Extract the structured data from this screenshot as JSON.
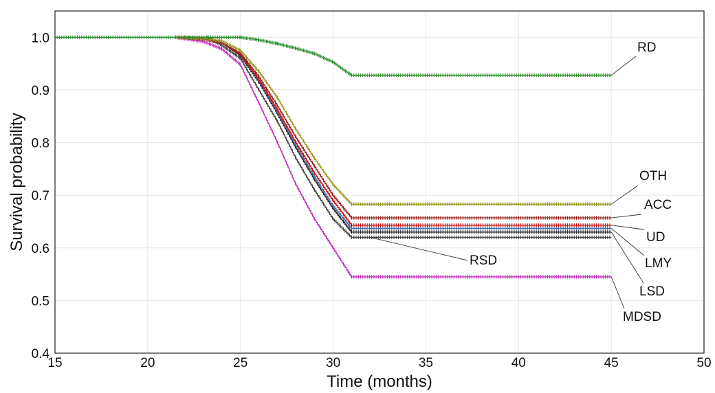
{
  "chart_data": {
    "type": "line",
    "title": "",
    "xlabel": "Time (months)",
    "ylabel": "Survival probability",
    "xlim": [
      15,
      50
    ],
    "ylim": [
      0.4,
      1.05
    ],
    "x_ticks": [
      "15",
      "20",
      "25",
      "30",
      "35",
      "40",
      "45",
      "50"
    ],
    "y_ticks": [
      "0.4",
      "0.5",
      "0.6",
      "0.7",
      "0.8",
      "0.9",
      "1.0"
    ],
    "grid": true,
    "legend": "direct labels at right",
    "series": [
      {
        "name": "RD",
        "color": "#2f8f2f",
        "x": [
          15,
          25,
          26,
          27,
          28,
          29,
          30,
          30.5,
          31,
          45
        ],
        "y": [
          1.0,
          1.0,
          0.995,
          0.988,
          0.979,
          0.969,
          0.953,
          0.94,
          0.928,
          0.928
        ]
      },
      {
        "name": "OTH",
        "color": "#9a9a20",
        "x": [
          21.5,
          23,
          24,
          25,
          26,
          27,
          28,
          29,
          30,
          31,
          45
        ],
        "y": [
          1.0,
          0.998,
          0.993,
          0.975,
          0.935,
          0.885,
          0.825,
          0.77,
          0.72,
          0.683,
          0.683
        ]
      },
      {
        "name": "ACC",
        "color": "#9a2020",
        "x": [
          21.5,
          23,
          24,
          25,
          26,
          27,
          28,
          29,
          30,
          31,
          45
        ],
        "y": [
          1.0,
          0.997,
          0.99,
          0.97,
          0.925,
          0.87,
          0.81,
          0.755,
          0.7,
          0.657,
          0.657
        ]
      },
      {
        "name": "UD",
        "color": "#cc1010",
        "x": [
          21.5,
          23,
          24,
          25,
          26,
          27,
          28,
          29,
          30,
          31,
          45
        ],
        "y": [
          1.0,
          0.997,
          0.99,
          0.968,
          0.92,
          0.862,
          0.8,
          0.742,
          0.69,
          0.643,
          0.643
        ]
      },
      {
        "name": "LMY",
        "color": "#4a6fb0",
        "x": [
          21.5,
          23,
          24,
          25,
          26,
          27,
          28,
          29,
          30,
          31,
          45
        ],
        "y": [
          1.0,
          0.997,
          0.99,
          0.967,
          0.918,
          0.858,
          0.795,
          0.735,
          0.68,
          0.637,
          0.637
        ]
      },
      {
        "name": "LSD",
        "color": "#222222",
        "x": [
          22,
          23,
          24,
          25,
          26,
          27,
          28,
          29,
          30,
          31,
          45
        ],
        "y": [
          1.0,
          0.997,
          0.99,
          0.965,
          0.915,
          0.855,
          0.79,
          0.73,
          0.675,
          0.63,
          0.63
        ]
      },
      {
        "name": "RSD",
        "color": "#444444",
        "x": [
          23.2,
          24,
          25,
          26,
          27,
          28,
          29,
          30,
          31,
          45
        ],
        "y": [
          1.0,
          0.985,
          0.96,
          0.9,
          0.84,
          0.77,
          0.71,
          0.655,
          0.62,
          0.62
        ]
      },
      {
        "name": "MDSD",
        "color": "#c030c0",
        "x": [
          21.5,
          23,
          24,
          25,
          26,
          27,
          28,
          29,
          30,
          31,
          45
        ],
        "y": [
          1.0,
          0.992,
          0.978,
          0.948,
          0.875,
          0.8,
          0.72,
          0.655,
          0.6,
          0.545,
          0.545
        ]
      }
    ],
    "labels": [
      {
        "text": "RD",
        "series": "RD"
      },
      {
        "text": "OTH",
        "series": "OTH"
      },
      {
        "text": "ACC",
        "series": "ACC"
      },
      {
        "text": "UD",
        "series": "UD"
      },
      {
        "text": "LMY",
        "series": "LMY"
      },
      {
        "text": "LSD",
        "series": "LSD"
      },
      {
        "text": "RSD",
        "series": "RSD"
      },
      {
        "text": "MDSD",
        "series": "MDSD"
      }
    ]
  }
}
